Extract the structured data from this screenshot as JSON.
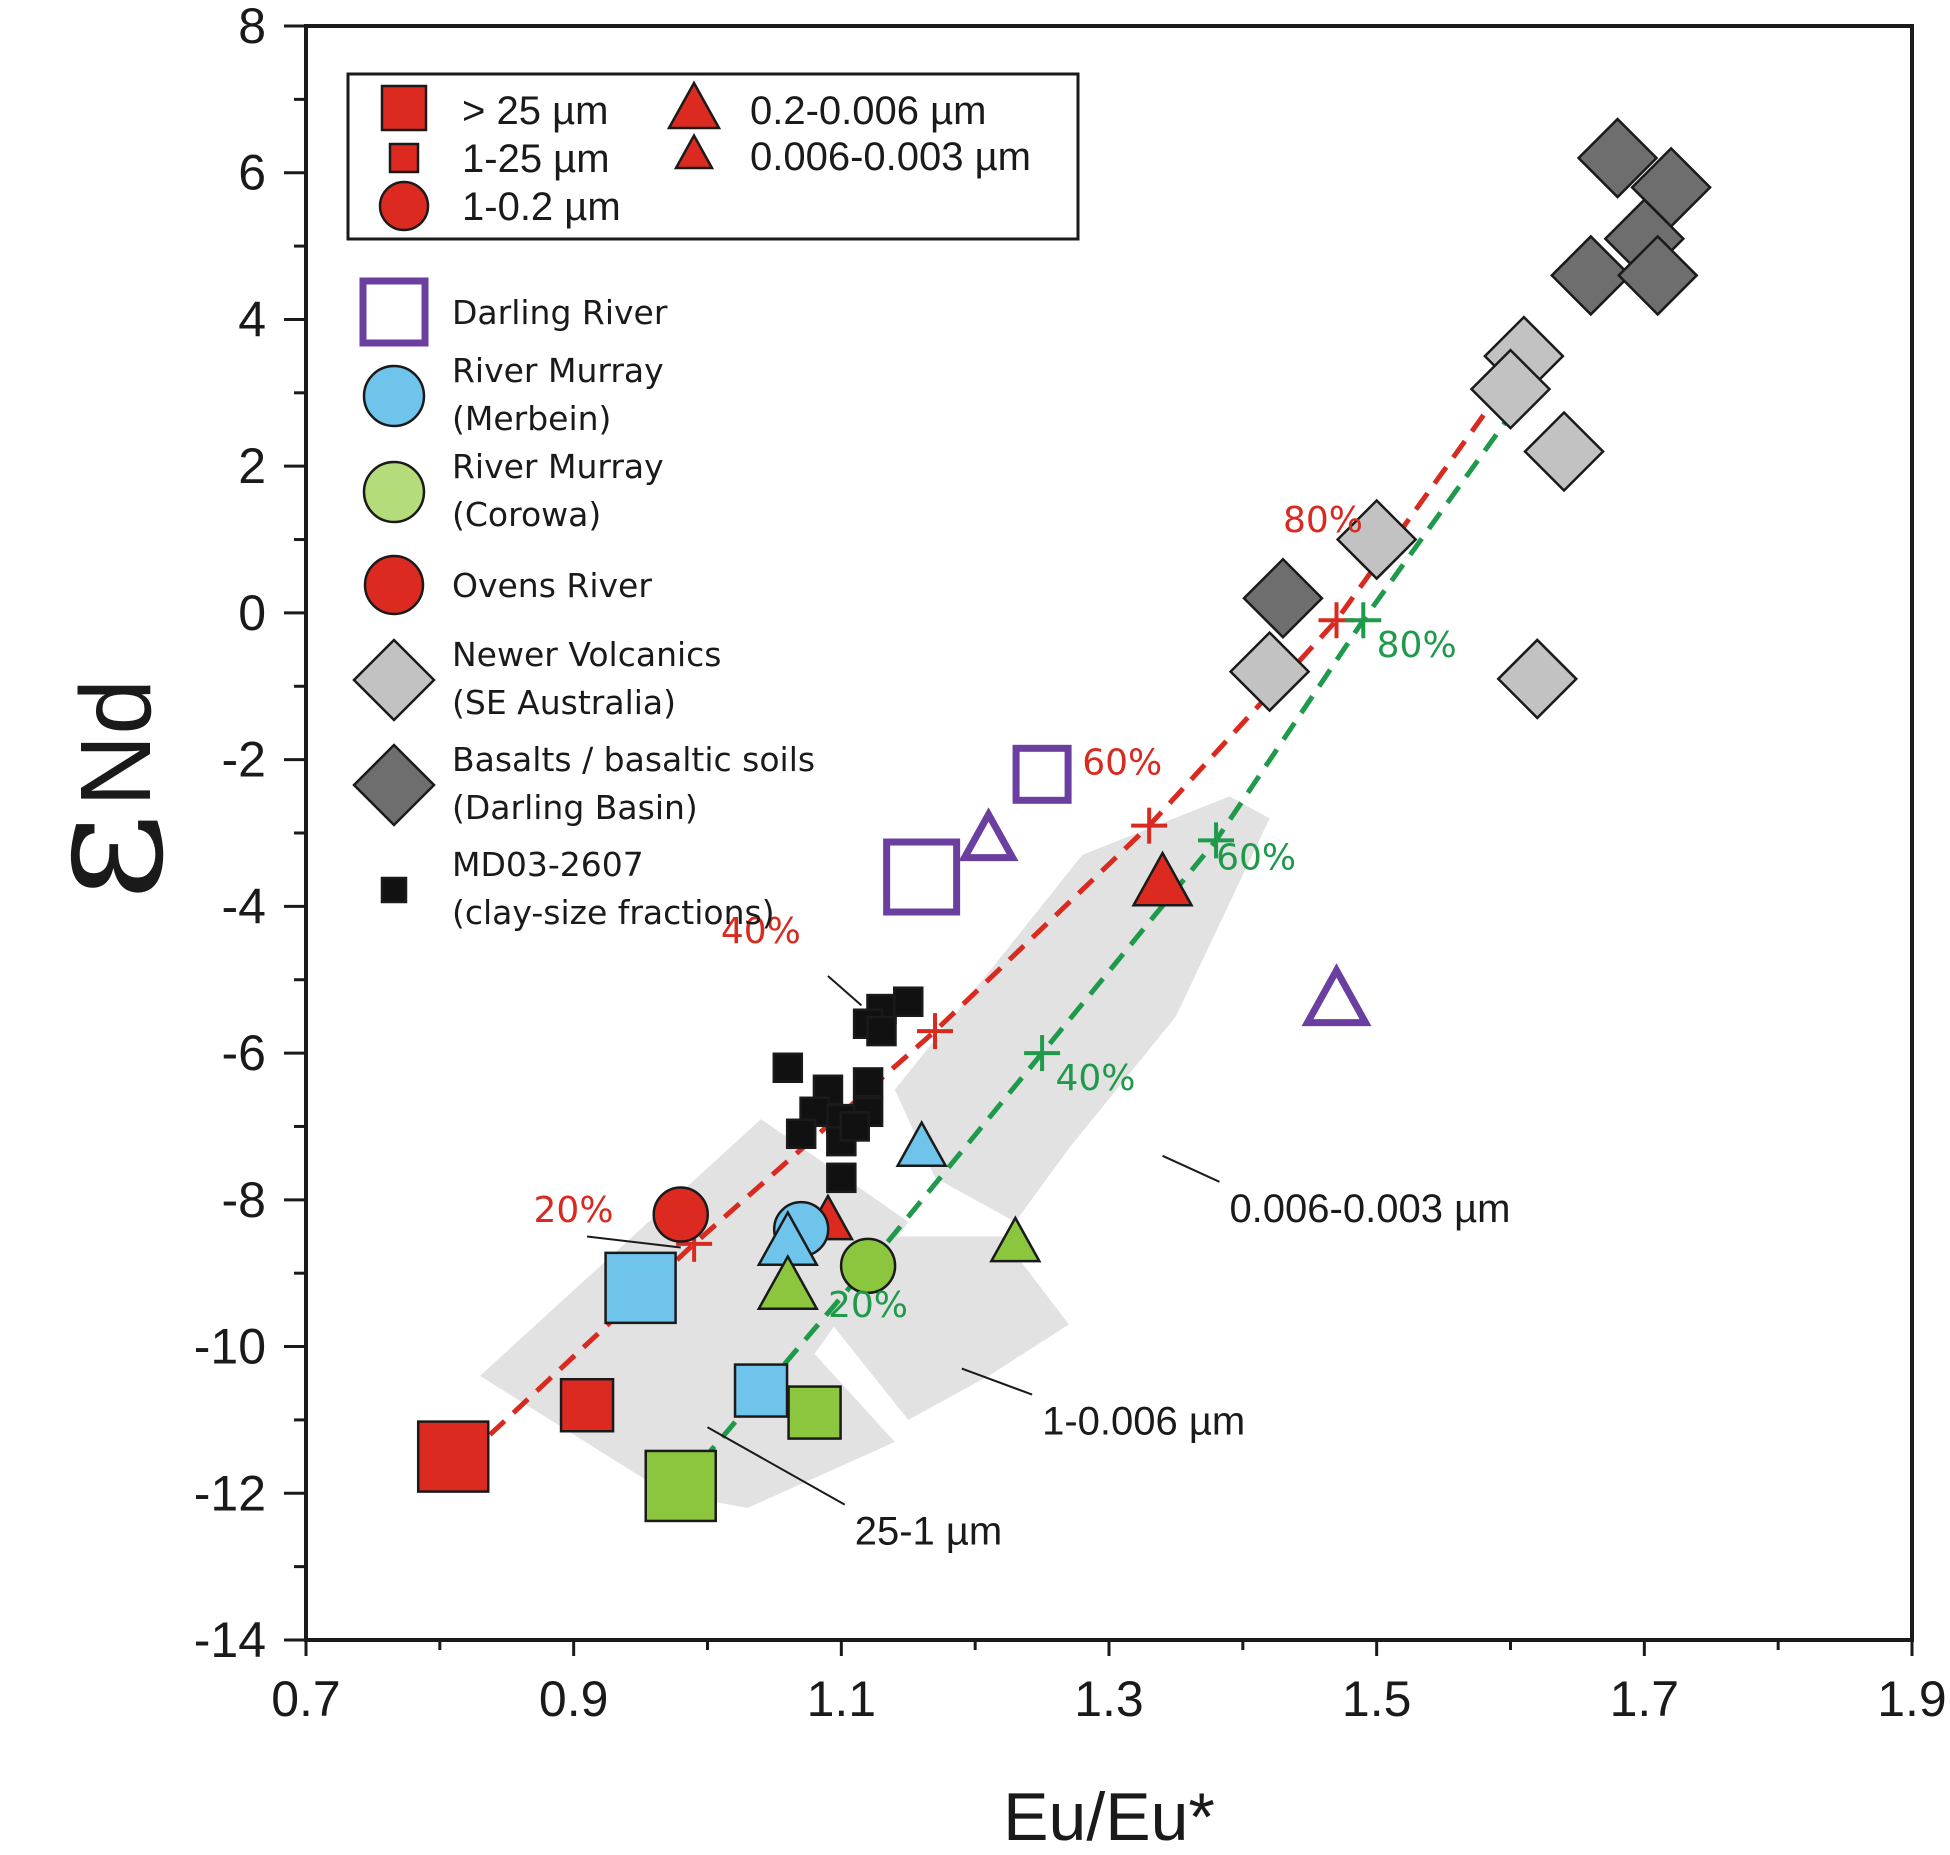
{
  "chart_data": {
    "type": "scatter",
    "xlabel": "Eu/Eu*",
    "ylabel": "εNd",
    "ylabel_base": "ε",
    "ylabel_sub": "Nd",
    "xlim": [
      0.7,
      1.9
    ],
    "ylim": [
      -14,
      8
    ],
    "x_ticks": [
      0.7,
      0.9,
      1.1,
      1.3,
      1.5,
      1.7,
      1.9
    ],
    "x_tick_labels": [
      "0.7",
      "0.9",
      "1.1",
      "1.3",
      "1.5",
      "1.7",
      "1.9"
    ],
    "y_ticks": [
      -14,
      -12,
      -10,
      -8,
      -6,
      -4,
      -2,
      0,
      2,
      4,
      6,
      8
    ],
    "y_tick_labels": [
      "-14",
      "-12",
      "-10",
      "-8",
      "-6",
      "-4",
      "-2",
      "0",
      "2",
      "4",
      "6",
      "8"
    ],
    "size_legend": [
      {
        "label": "> 25 µm",
        "shape": "square",
        "size": "large"
      },
      {
        "label": "1-25 µm",
        "shape": "square",
        "size": "small"
      },
      {
        "label": "1-0.2 µm",
        "shape": "circle",
        "size": "large"
      },
      {
        "label": "0.2-0.006 µm",
        "shape": "triangle",
        "size": "large"
      },
      {
        "label": "0.006-0.003 µm",
        "shape": "triangle",
        "size": "small"
      }
    ],
    "source_legend": [
      {
        "lines": [
          "Darling River"
        ],
        "shape": "square-open",
        "color": "#6b3fa0"
      },
      {
        "lines": [
          "River Murray",
          "(Merbein)"
        ],
        "shape": "circle",
        "color": "#6fc4ec"
      },
      {
        "lines": [
          "River Murray",
          "(Corowa)"
        ],
        "shape": "circle",
        "color": "#b4dc7a"
      },
      {
        "lines": [
          "Ovens River"
        ],
        "shape": "circle",
        "color": "#dc2a20"
      },
      {
        "lines": [
          "Newer Volcanics",
          "(SE Australia)"
        ],
        "shape": "diamond",
        "color": "#c2c2c2"
      },
      {
        "lines": [
          "Basalts / basaltic soils",
          "(Darling Basin)"
        ],
        "shape": "diamond",
        "color": "#6e6e6e"
      },
      {
        "lines": [
          "MD03-2607",
          "(clay-size fractions)"
        ],
        "shape": "square",
        "color": "#111111"
      }
    ],
    "zone_labels": [
      {
        "text": "25-1 µm",
        "anchor": [
          1.0,
          -11.1
        ],
        "at": [
          1.11,
          -12.7
        ]
      },
      {
        "text": "1-0.006 µm",
        "anchor": [
          1.19,
          -10.3
        ],
        "at": [
          1.25,
          -11.2
        ]
      },
      {
        "text": "0.006-0.003 µm",
        "anchor": [
          1.34,
          -7.4
        ],
        "at": [
          1.39,
          -8.3
        ]
      }
    ],
    "zones": [
      {
        "name": "25-1 µm",
        "polygon": [
          [
            0.83,
            -10.4
          ],
          [
            1.04,
            -6.9
          ],
          [
            1.15,
            -8.3
          ],
          [
            1.08,
            -10.1
          ],
          [
            1.14,
            -11.3
          ],
          [
            1.03,
            -12.2
          ],
          [
            0.97,
            -12.0
          ]
        ]
      },
      {
        "name": "1-0.006 µm",
        "polygon": [
          [
            1.01,
            -7.8
          ],
          [
            1.06,
            -7.1
          ],
          [
            1.14,
            -8.5
          ],
          [
            1.22,
            -8.5
          ],
          [
            1.27,
            -9.7
          ],
          [
            1.21,
            -10.4
          ],
          [
            1.15,
            -11.0
          ]
        ]
      },
      {
        "name": "0.006-0.003 µm",
        "polygon": [
          [
            1.14,
            -6.5
          ],
          [
            1.28,
            -3.3
          ],
          [
            1.39,
            -2.5
          ],
          [
            1.42,
            -2.8
          ],
          [
            1.35,
            -5.5
          ],
          [
            1.27,
            -7.3
          ],
          [
            1.23,
            -8.3
          ],
          [
            1.17,
            -7.7
          ]
        ]
      }
    ],
    "mixing_curves": [
      {
        "name": "red mixing line",
        "color": "#d92a20",
        "points": [
          [
            0.82,
            -11.5
          ],
          [
            0.99,
            -8.6
          ],
          [
            1.17,
            -5.7
          ],
          [
            1.33,
            -2.9
          ],
          [
            1.47,
            -0.1
          ],
          [
            1.58,
            2.7
          ]
        ],
        "markers": [
          [
            0.82,
            -11.5
          ],
          [
            0.99,
            -8.6
          ],
          [
            1.17,
            -5.7
          ],
          [
            1.33,
            -2.9
          ],
          [
            1.47,
            -0.1
          ]
        ],
        "labels": [
          {
            "text": "20%",
            "at": [
              0.87,
              -8.3
            ]
          },
          {
            "text": "40%",
            "at": [
              1.01,
              -4.5
            ]
          },
          {
            "text": "60%",
            "at": [
              1.28,
              -2.2
            ]
          },
          {
            "text": "80%",
            "at": [
              1.43,
              1.1
            ]
          }
        ]
      },
      {
        "name": "green mixing line",
        "color": "#1f9a4b",
        "points": [
          [
            0.98,
            -11.9
          ],
          [
            1.12,
            -8.9
          ],
          [
            1.25,
            -6.0
          ],
          [
            1.38,
            -3.1
          ],
          [
            1.49,
            -0.1
          ],
          [
            1.6,
            2.7
          ]
        ],
        "markers": [
          [
            0.98,
            -11.9
          ],
          [
            1.12,
            -8.9
          ],
          [
            1.25,
            -6.0
          ],
          [
            1.38,
            -3.1
          ],
          [
            1.49,
            -0.1
          ]
        ],
        "labels": [
          {
            "text": "20%",
            "at": [
              1.09,
              -9.6
            ]
          },
          {
            "text": "40%",
            "at": [
              1.26,
              -6.5
            ]
          },
          {
            "text": "60%",
            "at": [
              1.38,
              -3.5
            ]
          },
          {
            "text": "80%",
            "at": [
              1.5,
              -0.6
            ]
          }
        ]
      }
    ],
    "series": [
      {
        "name": "Basalts / basaltic soils (Darling Basin)",
        "shape": "diamond",
        "color": "#6e6e6e",
        "points": [
          [
            1.68,
            6.2
          ],
          [
            1.72,
            5.8
          ],
          [
            1.7,
            5.1
          ],
          [
            1.66,
            4.6
          ],
          [
            1.71,
            4.6
          ],
          [
            1.43,
            0.2
          ]
        ]
      },
      {
        "name": "Newer Volcanics (SE Australia)",
        "shape": "diamond",
        "color": "#c2c2c2",
        "points": [
          [
            1.61,
            3.5
          ],
          [
            1.6,
            3.05
          ],
          [
            1.64,
            2.2
          ],
          [
            1.5,
            1.0
          ],
          [
            1.42,
            -0.8
          ],
          [
            1.62,
            -0.9
          ]
        ]
      },
      {
        "name": "MD03-2607 (clay-size fractions)",
        "shape": "square",
        "color": "#111111",
        "points": [
          [
            1.13,
            -5.4
          ],
          [
            1.15,
            -5.3
          ],
          [
            1.12,
            -5.6
          ],
          [
            1.13,
            -5.7
          ],
          [
            1.06,
            -6.2
          ],
          [
            1.09,
            -6.5
          ],
          [
            1.12,
            -6.4
          ],
          [
            1.08,
            -6.8
          ],
          [
            1.1,
            -6.9
          ],
          [
            1.12,
            -6.8
          ],
          [
            1.07,
            -7.1
          ],
          [
            1.1,
            -7.2
          ],
          [
            1.11,
            -7.0
          ],
          [
            1.1,
            -7.7
          ]
        ]
      },
      {
        "name": "Darling River > 25 µm",
        "shape": "square-open",
        "color": "#6b3fa0",
        "points": [
          [
            1.16,
            -3.6
          ]
        ]
      },
      {
        "name": "Darling River 1-25 µm",
        "shape": "square-open",
        "color": "#6b3fa0",
        "points": [
          [
            1.25,
            -2.2
          ]
        ]
      },
      {
        "name": "Darling River 0.2-0.006 µm",
        "shape": "triangle-open",
        "color": "#6b3fa0",
        "points": [
          [
            1.47,
            -5.3
          ]
        ]
      },
      {
        "name": "Darling River 0.006-0.003 µm",
        "shape": "triangle-open",
        "color": "#6b3fa0",
        "points": [
          [
            1.21,
            -3.1
          ]
        ]
      },
      {
        "name": "Ovens River > 25 µm",
        "shape": "square",
        "color": "#dc2a20",
        "points": [
          [
            0.81,
            -11.5
          ]
        ]
      },
      {
        "name": "Ovens River 1-25 µm",
        "shape": "square",
        "color": "#dc2a20",
        "points": [
          [
            0.91,
            -10.8
          ]
        ]
      },
      {
        "name": "Ovens River 1-0.2 µm",
        "shape": "circle",
        "color": "#dc2a20",
        "points": [
          [
            0.98,
            -8.2
          ]
        ]
      },
      {
        "name": "Ovens River 0.2-0.006 µm",
        "shape": "triangle",
        "color": "#dc2a20",
        "points": [
          [
            1.34,
            -3.7
          ]
        ]
      },
      {
        "name": "Ovens River 0.006-0.003 µm",
        "shape": "triangle",
        "color": "#dc2a20",
        "points": [
          [
            1.09,
            -8.3
          ]
        ]
      },
      {
        "name": "River Murray (Merbein) > 25 µm",
        "shape": "square",
        "color": "#6fc4ec",
        "points": [
          [
            0.95,
            -9.2
          ]
        ]
      },
      {
        "name": "River Murray (Merbein) 1-25 µm",
        "shape": "square",
        "color": "#6fc4ec",
        "points": [
          [
            1.04,
            -10.6
          ]
        ]
      },
      {
        "name": "River Murray (Merbein) 1-0.2 µm",
        "shape": "circle",
        "color": "#6fc4ec",
        "points": [
          [
            1.07,
            -8.4
          ]
        ]
      },
      {
        "name": "River Murray (Merbein) 0.2-0.006 µm",
        "shape": "triangle",
        "color": "#6fc4ec",
        "points": [
          [
            1.06,
            -8.6
          ]
        ]
      },
      {
        "name": "River Murray (Merbein) 0.006-0.003 µm",
        "shape": "triangle",
        "color": "#6fc4ec",
        "points": [
          [
            1.16,
            -7.3
          ]
        ]
      },
      {
        "name": "River Murray (Corowa) > 25 µm",
        "shape": "square",
        "color": "#8cc63f",
        "points": [
          [
            0.98,
            -11.9
          ]
        ]
      },
      {
        "name": "River Murray (Corowa) 1-25 µm",
        "shape": "square",
        "color": "#8cc63f",
        "points": [
          [
            1.08,
            -10.9
          ]
        ]
      },
      {
        "name": "River Murray (Corowa) 1-0.2 µm",
        "shape": "circle",
        "color": "#8cc63f",
        "points": [
          [
            1.12,
            -8.9
          ]
        ]
      },
      {
        "name": "River Murray (Corowa) 0.2-0.006 µm",
        "shape": "triangle",
        "color": "#8cc63f",
        "points": [
          [
            1.06,
            -9.2
          ]
        ]
      },
      {
        "name": "River Murray (Corowa) 0.006-0.003 µm",
        "shape": "triangle",
        "color": "#8cc63f",
        "points": [
          [
            1.23,
            -8.6
          ]
        ]
      }
    ]
  }
}
